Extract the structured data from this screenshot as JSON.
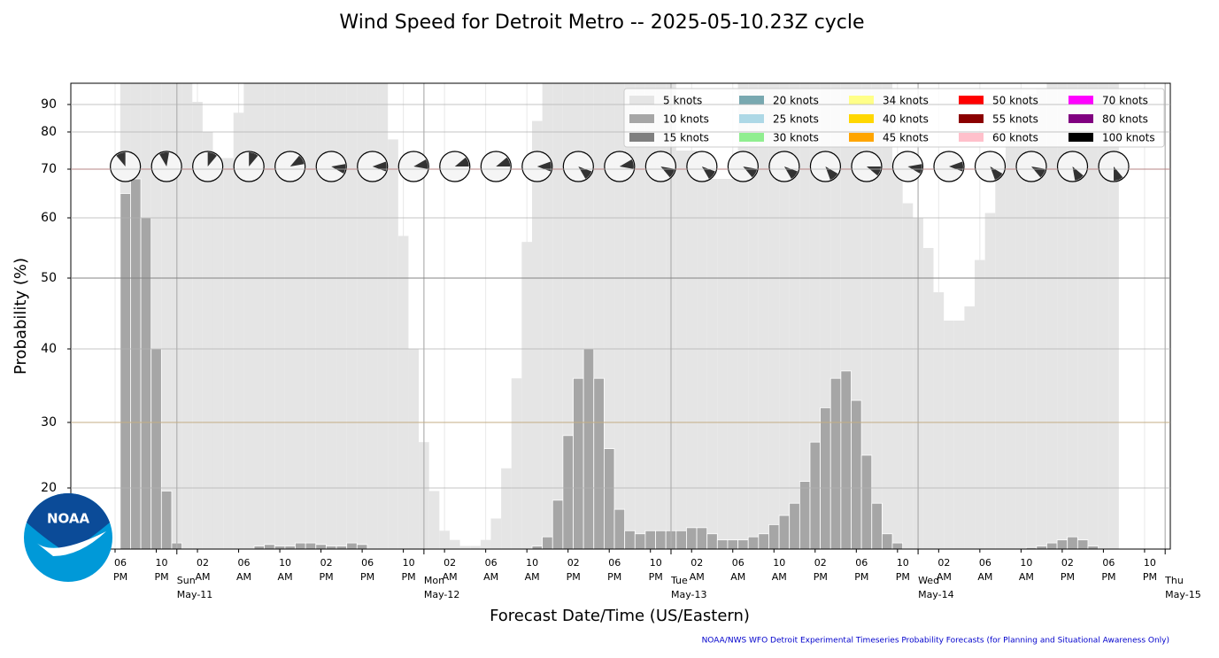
{
  "chart_data": {
    "type": "bar",
    "title": "Wind Speed for Detroit Metro -- 2025-05-10.23Z cycle",
    "y_label": "Probability (%)",
    "x_label": "Forecast Date/Time (US/Eastern)",
    "footer": "NOAA/NWS WFO Detroit Experimental Timeseries Probability Forecasts (for Planning and Situational Awareness Only)",
    "logo_text": "NOAA",
    "ylim": [
      0,
      98
    ],
    "yticks": [
      20,
      30,
      40,
      50,
      60,
      70,
      80,
      90
    ],
    "xlim": [
      -5.3,
      101.5
    ],
    "grid": true,
    "legend": "upper right",
    "xticks": [
      {
        "value": -1,
        "label": "06\nPM"
      },
      {
        "value": 3,
        "label": "10\nPM"
      },
      {
        "value": 7,
        "label": "02\nAM"
      },
      {
        "value": 11,
        "label": "06\nAM"
      },
      {
        "value": 15,
        "label": "10\nAM"
      },
      {
        "value": 19,
        "label": "02\nPM"
      },
      {
        "value": 23,
        "label": "06\nPM"
      },
      {
        "value": 27,
        "label": "10\nPM"
      },
      {
        "value": 31,
        "label": "02\nAM"
      },
      {
        "value": 35,
        "label": "06\nAM"
      },
      {
        "value": 39,
        "label": "10\nAM"
      },
      {
        "value": 43,
        "label": "02\nPM"
      },
      {
        "value": 47,
        "label": "06\nPM"
      },
      {
        "value": 51,
        "label": "10\nPM"
      },
      {
        "value": 55,
        "label": "02\nAM"
      },
      {
        "value": 59,
        "label": "06\nAM"
      },
      {
        "value": 63,
        "label": "10\nAM"
      },
      {
        "value": 67,
        "label": "02\nPM"
      },
      {
        "value": 71,
        "label": "06\nPM"
      },
      {
        "value": 75,
        "label": "10\nPM"
      },
      {
        "value": 79,
        "label": "02\nAM"
      },
      {
        "value": 83,
        "label": "06\nAM"
      },
      {
        "value": 87,
        "label": "10\nAM"
      },
      {
        "value": 91,
        "label": "02\nPM"
      },
      {
        "value": 95,
        "label": "06\nPM"
      },
      {
        "value": 99,
        "label": "10\nPM"
      }
    ],
    "day_ticks": [
      {
        "value": 5,
        "label": "Sun\nMay-11"
      },
      {
        "value": 29,
        "label": "Mon\nMay-12"
      },
      {
        "value": 53,
        "label": "Tue\nMay-13"
      },
      {
        "value": 77,
        "label": "Wed\nMay-14"
      },
      {
        "value": 101,
        "label": "Thu\nMay-15"
      }
    ],
    "reference_lines": [
      {
        "value": 70,
        "color": "#cc0000"
      },
      {
        "value": 50,
        "color": "#000000"
      },
      {
        "value": 30,
        "color": "#ffa500"
      }
    ],
    "series": [
      {
        "name": "5 knots",
        "color": "#e5e5e5",
        "values": [
          100,
          100,
          100,
          100,
          100,
          100,
          100,
          91,
          80,
          73,
          73,
          87,
          100,
          100,
          100,
          100,
          100,
          100,
          100,
          100,
          100,
          100,
          100,
          100,
          100,
          100,
          78,
          57,
          40,
          27,
          19,
          6,
          3,
          1,
          1,
          3,
          10,
          23,
          36,
          56,
          84,
          100,
          100,
          100,
          100,
          100,
          100,
          100,
          100,
          100,
          100,
          100,
          100,
          100,
          75,
          75,
          73,
          68,
          68,
          68,
          100,
          100,
          100,
          100,
          100,
          100,
          100,
          100,
          100,
          100,
          100,
          100,
          100,
          100,
          100,
          70,
          63,
          60,
          55,
          48,
          44,
          44,
          46,
          53,
          61,
          70,
          79,
          88,
          94,
          96,
          100,
          100,
          100,
          100,
          100,
          100,
          100
        ]
      },
      {
        "name": "10 knots",
        "color": "#a6a6a6",
        "values": [
          65,
          68,
          60,
          40,
          19,
          2,
          0,
          0,
          0,
          0,
          0,
          0,
          0,
          1,
          1.5,
          1,
          1,
          2,
          2,
          1.5,
          1,
          1,
          2,
          1.5,
          0,
          0,
          0,
          0,
          0,
          0,
          0,
          0,
          0,
          0,
          0,
          0,
          0,
          0,
          0,
          0,
          1,
          4,
          16,
          28,
          36,
          40,
          36,
          26,
          13,
          6,
          5,
          6,
          6,
          6,
          6,
          7,
          7,
          5,
          3,
          3,
          3,
          4,
          5,
          8,
          11,
          15,
          21,
          27,
          32,
          36,
          37,
          33,
          25,
          15,
          5,
          2,
          0,
          0,
          0,
          0,
          0,
          0,
          0,
          0,
          0,
          0,
          0,
          0,
          0.5,
          1,
          2,
          3,
          4,
          3,
          1,
          0,
          0
        ]
      }
    ],
    "legend_extra": [
      {
        "name": "15 knots",
        "color": "#7f7f7f"
      },
      {
        "name": "20 knots",
        "color": "#78a8b0"
      },
      {
        "name": "25 knots",
        "color": "#add8e6"
      },
      {
        "name": "30 knots",
        "color": "#90ee90"
      },
      {
        "name": "34 knots",
        "color": "#ffff88"
      },
      {
        "name": "40 knots",
        "color": "#ffd700"
      },
      {
        "name": "45 knots",
        "color": "#ffa500"
      },
      {
        "name": "50 knots",
        "color": "#ff0000"
      },
      {
        "name": "55 knots",
        "color": "#8b0000"
      },
      {
        "name": "60 knots",
        "color": "#ffc0cb"
      },
      {
        "name": "70 knots",
        "color": "#ff00ff"
      },
      {
        "name": "80 knots",
        "color": "#800080"
      },
      {
        "name": "100 knots",
        "color": "#000000"
      }
    ],
    "wind_direction": [
      340,
      350,
      20,
      20,
      60,
      100,
      90,
      80,
      70,
      70,
      90,
      130,
      80,
      120,
      130,
      120,
      130,
      140,
      110,
      100,
      90,
      140,
      120,
      150,
      160
    ]
  }
}
